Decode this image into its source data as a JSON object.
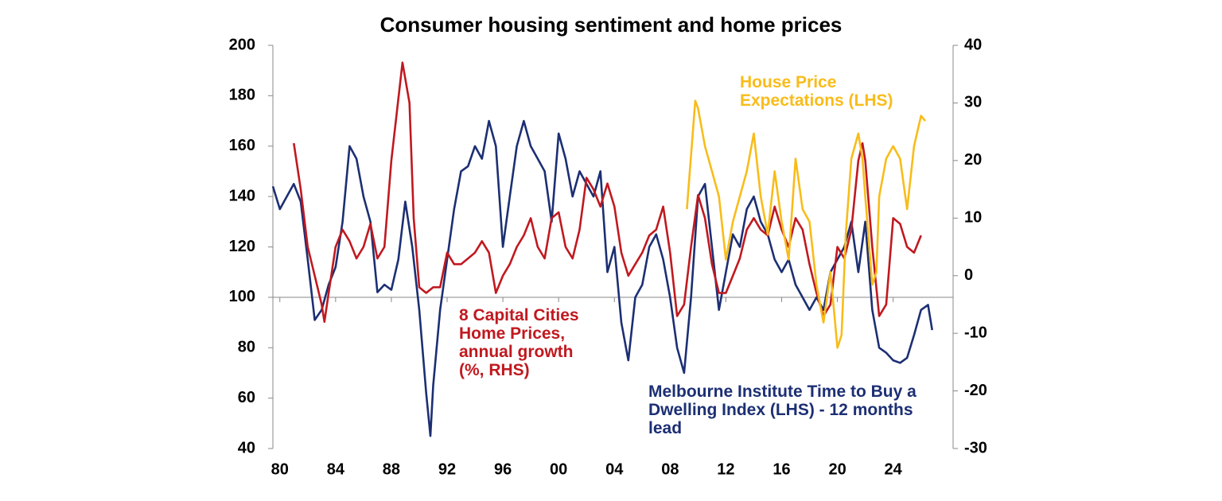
{
  "chart_data": {
    "type": "line",
    "title": "Consumer housing sentiment and home prices",
    "xlim": [
      1979.5,
      2028.3
    ],
    "xticks": [
      {
        "value": 1980,
        "label": "80"
      },
      {
        "value": 1984,
        "label": "84"
      },
      {
        "value": 1988,
        "label": "88"
      },
      {
        "value": 1992,
        "label": "92"
      },
      {
        "value": 1996,
        "label": "96"
      },
      {
        "value": 2000,
        "label": "00"
      },
      {
        "value": 2004,
        "label": "04"
      },
      {
        "value": 2008,
        "label": "08"
      },
      {
        "value": 2012,
        "label": "12"
      },
      {
        "value": 2016,
        "label": "16"
      },
      {
        "value": 2020,
        "label": "20"
      },
      {
        "value": 2024,
        "label": "24"
      }
    ],
    "ylim": [
      40,
      200
    ],
    "yticks": [
      40,
      60,
      80,
      100,
      120,
      140,
      160,
      180,
      200
    ],
    "y2lim": [
      -30,
      40
    ],
    "y2ticks": [
      -30,
      -20,
      -10,
      0,
      10,
      20,
      30,
      40
    ],
    "x_axis_at": 100,
    "series": [
      {
        "name": "Melbourne Institute Time to Buy a Dwelling Index (LHS) - 12 months lead",
        "color": "#1c2f73",
        "axis": "y",
        "x": [
          1979.5,
          1980,
          1980.5,
          1981,
          1981.5,
          1982,
          1982.5,
          1983,
          1983.5,
          1984,
          1984.5,
          1985,
          1985.5,
          1986,
          1986.5,
          1987,
          1987.5,
          1988,
          1988.5,
          1989,
          1989.5,
          1990,
          1990.5,
          1990.8,
          1991,
          1991.5,
          1992,
          1992.5,
          1993,
          1993.5,
          1994,
          1994.5,
          1995,
          1995.5,
          1996,
          1996.5,
          1997,
          1997.5,
          1998,
          1998.5,
          1999,
          1999.5,
          2000,
          2000.5,
          2001,
          2001.5,
          2002,
          2002.5,
          2003,
          2003.5,
          2004,
          2004.5,
          2005,
          2005.5,
          2006,
          2006.5,
          2007,
          2007.5,
          2008,
          2008.5,
          2009,
          2009.5,
          2010,
          2010.5,
          2011,
          2011.5,
          2012,
          2012.5,
          2013,
          2013.5,
          2014,
          2014.5,
          2015,
          2015.5,
          2016,
          2016.5,
          2017,
          2017.5,
          2018,
          2018.5,
          2019,
          2019.5,
          2020,
          2020.5,
          2021,
          2021.5,
          2022,
          2022.5,
          2023,
          2023.5,
          2024,
          2024.5,
          2025,
          2025.5,
          2026,
          2026.5,
          2026.8
        ],
        "values": [
          144,
          135,
          140,
          145,
          138,
          115,
          91,
          95,
          105,
          112,
          130,
          160,
          155,
          140,
          130,
          102,
          105,
          103,
          115,
          138,
          120,
          95,
          62,
          45,
          65,
          95,
          115,
          135,
          150,
          152,
          160,
          155,
          170,
          160,
          120,
          140,
          160,
          170,
          160,
          155,
          150,
          130,
          165,
          155,
          140,
          150,
          145,
          140,
          150,
          110,
          120,
          90,
          75,
          100,
          105,
          120,
          125,
          115,
          100,
          80,
          70,
          100,
          140,
          145,
          120,
          95,
          110,
          125,
          120,
          135,
          140,
          130,
          125,
          115,
          110,
          115,
          105,
          100,
          95,
          100,
          95,
          110,
          115,
          120,
          130,
          110,
          130,
          95,
          80,
          78,
          75,
          74,
          76,
          85,
          95,
          97,
          87
        ]
      },
      {
        "name": "8 Capital Cities Home Prices, annual growth (%, RHS)",
        "color": "#c0191f",
        "axis": "y2",
        "x": [
          1981,
          1981.5,
          1982,
          1982.5,
          1983,
          1983.2,
          1983.5,
          1984,
          1984.5,
          1985,
          1985.5,
          1986,
          1986.5,
          1987,
          1987.5,
          1988,
          1988.8,
          1989.3,
          1989.6,
          1990,
          1990.5,
          1991,
          1991.5,
          1992,
          1992.5,
          1993,
          1993.5,
          1994,
          1994.5,
          1995,
          1995.5,
          1996,
          1996.5,
          1997,
          1997.5,
          1998,
          1998.5,
          1999,
          1999.5,
          2000,
          2000.5,
          2001,
          2001.5,
          2002,
          2002.5,
          2003,
          2003.5,
          2004,
          2004.5,
          2005,
          2005.5,
          2006,
          2006.5,
          2007,
          2007.5,
          2008,
          2008.5,
          2009,
          2009.5,
          2010,
          2010.5,
          2011,
          2011.5,
          2012,
          2012.5,
          2013,
          2013.5,
          2014,
          2014.5,
          2015,
          2015.5,
          2016,
          2016.5,
          2017,
          2017.5,
          2018,
          2018.5,
          2019,
          2019.5,
          2020,
          2020.5,
          2021,
          2021.5,
          2021.8,
          2022,
          2022.5,
          2023,
          2023.5,
          2024,
          2024.5,
          2025,
          2025.5,
          2026
        ],
        "values": [
          23,
          15,
          5,
          0,
          -5,
          -8,
          -3,
          5,
          8,
          6,
          3,
          5,
          9,
          3,
          5,
          20,
          37,
          30,
          10,
          -2,
          -3,
          -2,
          -2,
          4,
          2,
          2,
          3,
          4,
          6,
          4,
          -3,
          0,
          2,
          5,
          7,
          10,
          5,
          3,
          10,
          11,
          5,
          3,
          8,
          17,
          15,
          12,
          16,
          12,
          4,
          0,
          2,
          4,
          7,
          8,
          12,
          4,
          -7,
          -5,
          5,
          14,
          10,
          2,
          -3,
          -3,
          0,
          3,
          8,
          10,
          8,
          7,
          12,
          8,
          5,
          10,
          8,
          2,
          -3,
          -7,
          -5,
          5,
          3,
          8,
          20,
          23,
          20,
          5,
          -7,
          -5,
          10,
          9,
          5,
          4,
          7
        ]
      },
      {
        "name": "House Price Expectations (LHS)",
        "color": "#f8bc1a",
        "axis": "y",
        "x": [
          2009.2,
          2009.8,
          2010,
          2010.5,
          2011,
          2011.5,
          2012,
          2012.5,
          2013,
          2013.5,
          2014,
          2014.5,
          2015,
          2015.5,
          2016,
          2016.5,
          2017,
          2017.5,
          2018,
          2018.5,
          2019,
          2019.5,
          2020,
          2020.3,
          2020.6,
          2021,
          2021.5,
          2021.8,
          2022,
          2022.5,
          2022.8,
          2023,
          2023.5,
          2024,
          2024.5,
          2025,
          2025.5,
          2026,
          2026.3
        ],
        "values": [
          135,
          178,
          175,
          160,
          150,
          140,
          115,
          130,
          140,
          150,
          165,
          140,
          125,
          150,
          130,
          115,
          155,
          135,
          130,
          105,
          90,
          110,
          80,
          85,
          125,
          155,
          165,
          155,
          140,
          105,
          110,
          140,
          155,
          160,
          155,
          135,
          160,
          172,
          170
        ]
      }
    ]
  }
}
